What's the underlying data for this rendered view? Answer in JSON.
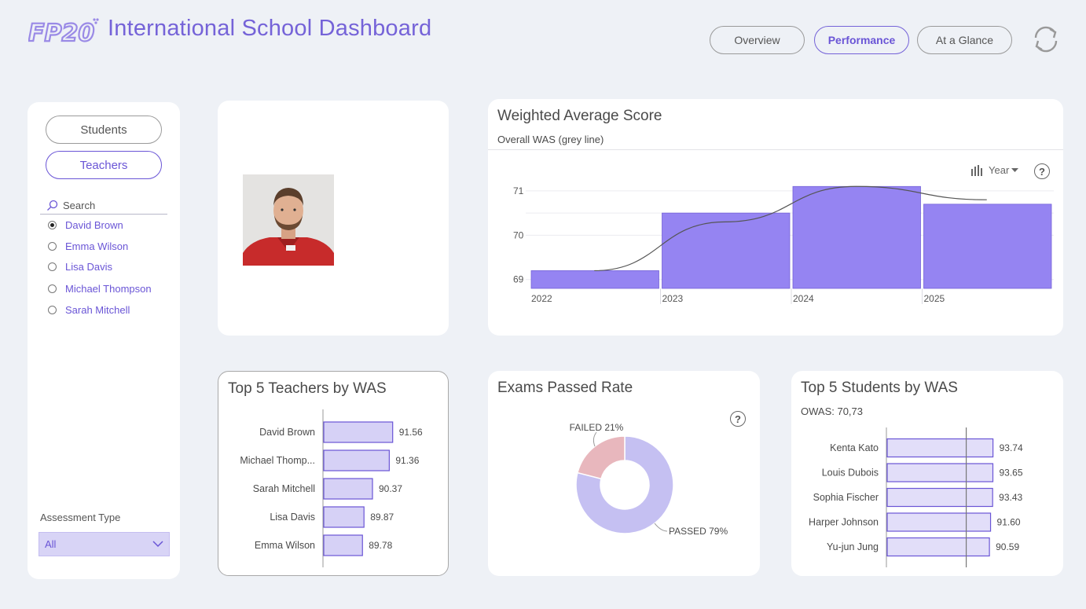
{
  "header": {
    "title": "International School Dashboard",
    "logo_text": "FP20",
    "nav": [
      {
        "label": "Overview",
        "active": false
      },
      {
        "label": "Performance",
        "active": true
      },
      {
        "label": "At a Glance",
        "active": false
      }
    ]
  },
  "sidebar": {
    "toggles": [
      {
        "label": "Students",
        "active": false
      },
      {
        "label": "Teachers",
        "active": true
      }
    ],
    "search_placeholder": "Search",
    "people": [
      {
        "name": "David Brown",
        "selected": true
      },
      {
        "name": "Emma Wilson",
        "selected": false
      },
      {
        "name": "Lisa Davis",
        "selected": false
      },
      {
        "name": "Michael Thompson",
        "selected": false
      },
      {
        "name": "Sarah Mitchell",
        "selected": false
      }
    ],
    "assessment_label": "Assessment Type",
    "assessment_value": "All"
  },
  "was_chart": {
    "title": "Weighted Average Score",
    "subtitle": "Overall WAS (grey line)",
    "granularity": "Year",
    "help": "?"
  },
  "teachers_chart": {
    "title": "Top 5 Teachers by WAS"
  },
  "exams_chart": {
    "title": "Exams Passed Rate",
    "help": "?"
  },
  "students_chart": {
    "title": "Top 5 Students by WAS",
    "subtitle": "OWAS: 70,73"
  },
  "chart_data": [
    {
      "type": "bar",
      "title": "Weighted Average Score",
      "categories": [
        "2022",
        "2023",
        "2024",
        "2025"
      ],
      "values": [
        69.2,
        70.5,
        71.1,
        70.7
      ],
      "line": {
        "name": "Overall WAS",
        "values": [
          69.2,
          70.3,
          71.1,
          70.8
        ]
      },
      "y_ticks": [
        69,
        70,
        71
      ],
      "ylim": [
        68.8,
        71.3
      ],
      "color": "#9584f2",
      "line_color": "#555555"
    },
    {
      "type": "bar",
      "orientation": "horizontal",
      "title": "Top 5 Teachers by WAS",
      "categories": [
        "David Brown",
        "Michael Thomp...",
        "Sarah Mitchell",
        "Lisa Davis",
        "Emma Wilson"
      ],
      "values": [
        91.56,
        91.36,
        90.37,
        89.87,
        89.78
      ],
      "labels": [
        "91.56",
        "91.36",
        "90.37",
        "89.87",
        "89.78"
      ],
      "xlim": [
        87.5,
        92.5
      ]
    },
    {
      "type": "pie",
      "title": "Exams Passed Rate",
      "slices": [
        {
          "label": "PASSED 79%",
          "value": 79,
          "color": "#c5c0f2"
        },
        {
          "label": "FAILED 21%",
          "value": 21,
          "color": "#e8b7bd"
        }
      ]
    },
    {
      "type": "bar",
      "orientation": "horizontal",
      "title": "Top 5 Students by WAS",
      "categories": [
        "Kenta Kato",
        "Louis Dubois",
        "Sophia Fischer",
        "Harper Johnson",
        "Yu-jun Jung"
      ],
      "values": [
        93.74,
        93.65,
        93.43,
        91.6,
        90.59
      ],
      "labels": [
        "93.74",
        "93.65",
        "93.43",
        "91.60",
        "90.59"
      ],
      "reference": 70.73,
      "xlim": [
        0,
        94
      ]
    }
  ]
}
